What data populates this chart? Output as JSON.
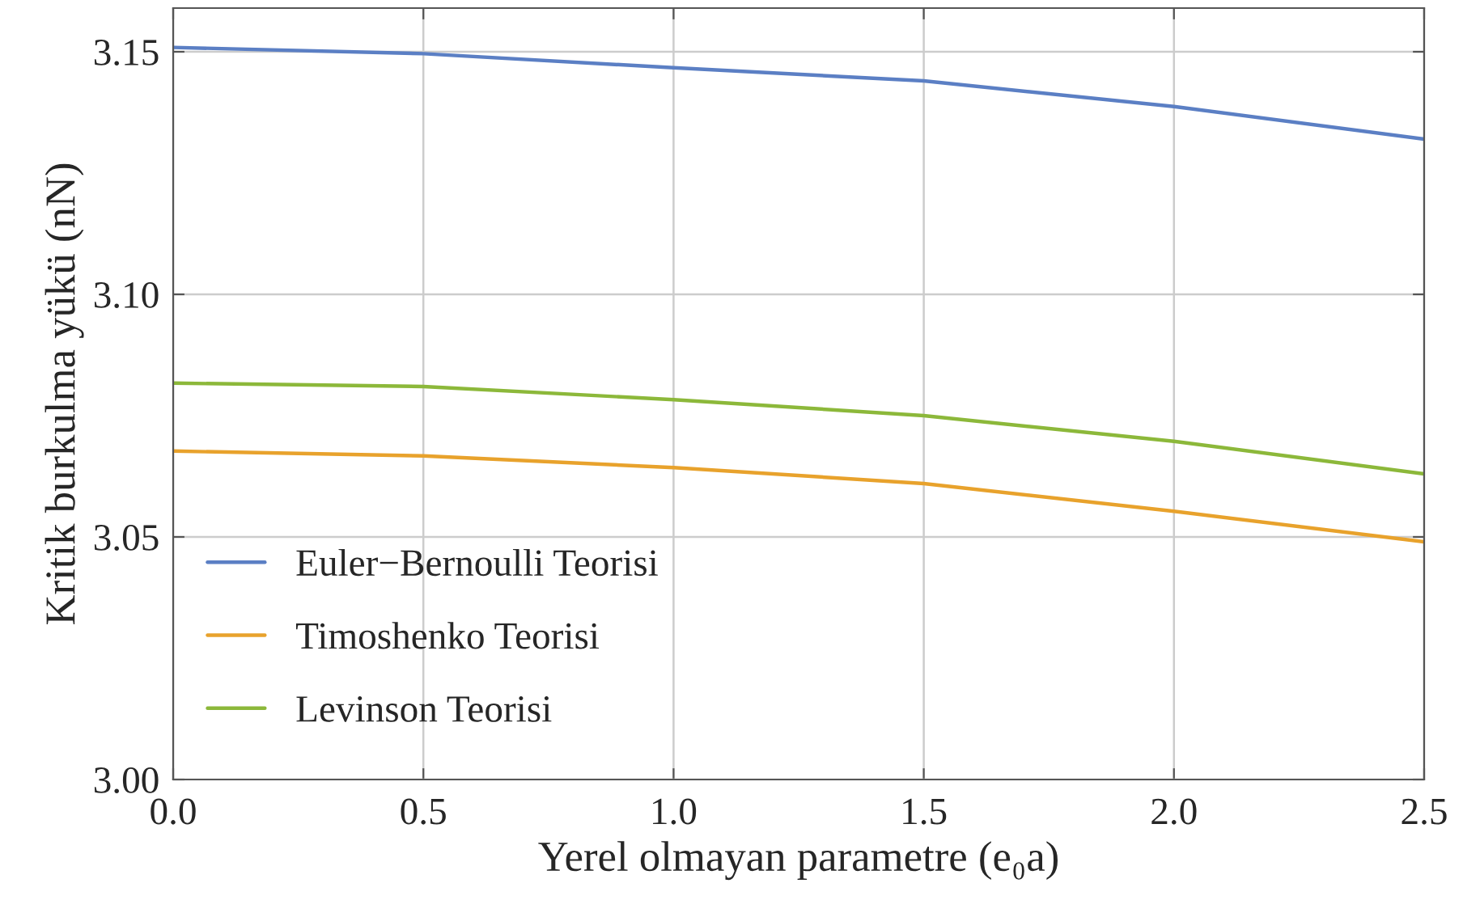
{
  "chart_data": {
    "type": "line",
    "xlabel": "Yerel olmayan parametre (e₀a)",
    "ylabel": "Kritik burkulma yükü (nN)",
    "x": [
      0,
      0.5,
      1.0,
      1.5,
      2.0,
      2.5
    ],
    "series": [
      {
        "name": "Euler−Bernoulli Teorisi",
        "color": "#5b7fc4",
        "values": [
          3.1509,
          3.1496,
          3.1467,
          3.144,
          3.1387,
          3.132
        ]
      },
      {
        "name": "Timoshenko Teorisi",
        "color": "#e8a22c",
        "values": [
          3.0677,
          3.0667,
          3.0643,
          3.061,
          3.0553,
          3.049
        ]
      },
      {
        "name": "Levinson Teorisi",
        "color": "#8cb83a",
        "values": [
          3.0817,
          3.081,
          3.0783,
          3.075,
          3.0697,
          3.063
        ]
      }
    ],
    "xlim": [
      0,
      2.5
    ],
    "xticks": [
      {
        "value": 0,
        "label": "0.0"
      },
      0.5,
      {
        "value": 1,
        "label": "1.0"
      },
      1.5,
      {
        "value": 2,
        "label": "2.0"
      },
      2.5
    ],
    "ylim": [
      3.0,
      3.159
    ],
    "yticks": [
      {
        "value": 3.0,
        "label": "3.00"
      },
      3.05,
      {
        "value": 3.1,
        "label": "3.10"
      },
      3.15
    ],
    "grid": true,
    "legend": "bottom left",
    "marker": "none",
    "line_style": "solid"
  }
}
